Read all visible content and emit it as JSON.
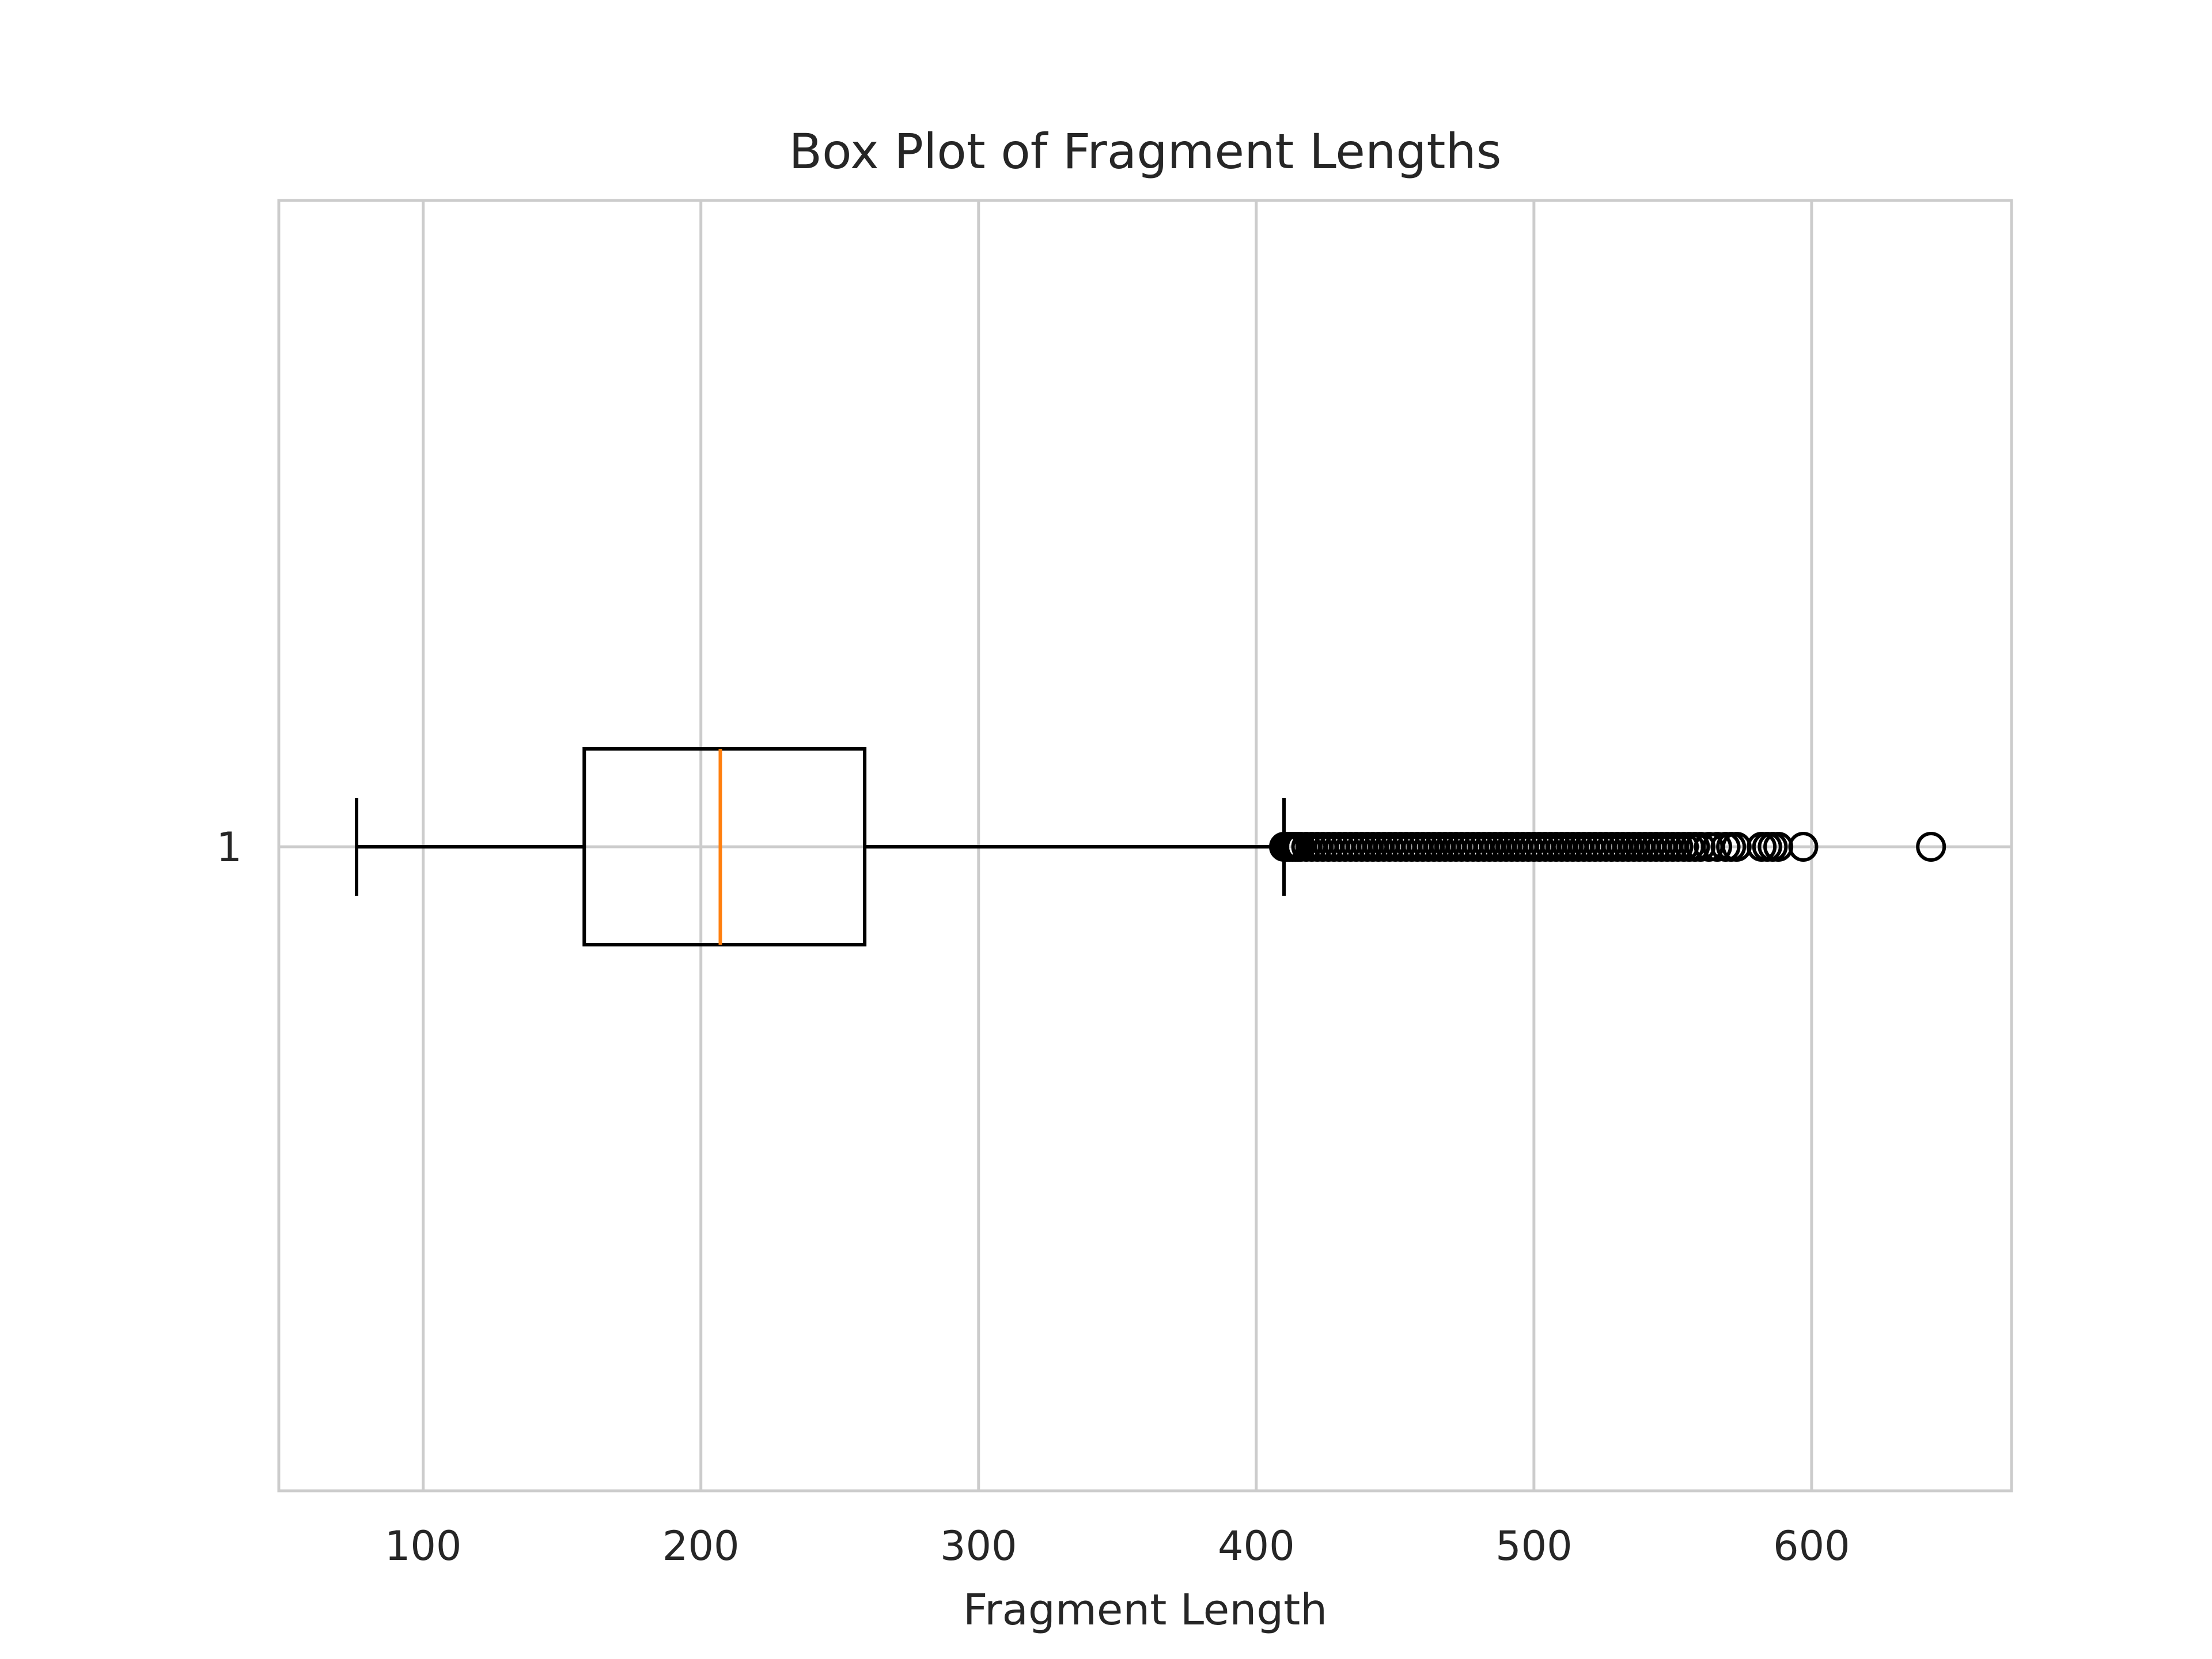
{
  "chart_data": {
    "type": "box",
    "orientation": "horizontal",
    "title": "Box Plot of Fragment Lengths",
    "xlabel": "Fragment Length",
    "ylabel": "",
    "xlim": [
      48,
      672
    ],
    "x_ticks": [
      100,
      200,
      300,
      400,
      500,
      600
    ],
    "x_tick_labels": [
      "100",
      "200",
      "300",
      "400",
      "500",
      "600"
    ],
    "y_tick_labels": [
      "1"
    ],
    "grid": true,
    "boxes": [
      {
        "name": "1",
        "whisker_low": 76,
        "q1": 158,
        "median": 207,
        "q3": 259,
        "whisker_high": 410,
        "outliers": [
          410,
          411,
          412,
          413,
          414,
          415,
          416,
          418,
          420,
          422,
          424,
          426,
          428,
          430,
          432,
          434,
          436,
          438,
          440,
          442,
          444,
          446,
          448,
          450,
          452,
          454,
          456,
          458,
          460,
          462,
          464,
          466,
          468,
          470,
          472,
          474,
          476,
          478,
          480,
          482,
          484,
          486,
          488,
          490,
          492,
          494,
          496,
          498,
          500,
          502,
          504,
          506,
          508,
          510,
          512,
          514,
          516,
          518,
          520,
          522,
          524,
          526,
          528,
          530,
          532,
          534,
          536,
          538,
          540,
          542,
          544,
          546,
          548,
          550,
          552,
          554,
          556,
          558,
          560,
          563,
          566,
          569,
          571,
          573,
          582,
          584,
          586,
          588,
          597,
          643
        ]
      }
    ],
    "colors": {
      "box": "#000000",
      "median": "#ff7f0e",
      "grid": "#cccccc",
      "text": "#262626"
    }
  }
}
